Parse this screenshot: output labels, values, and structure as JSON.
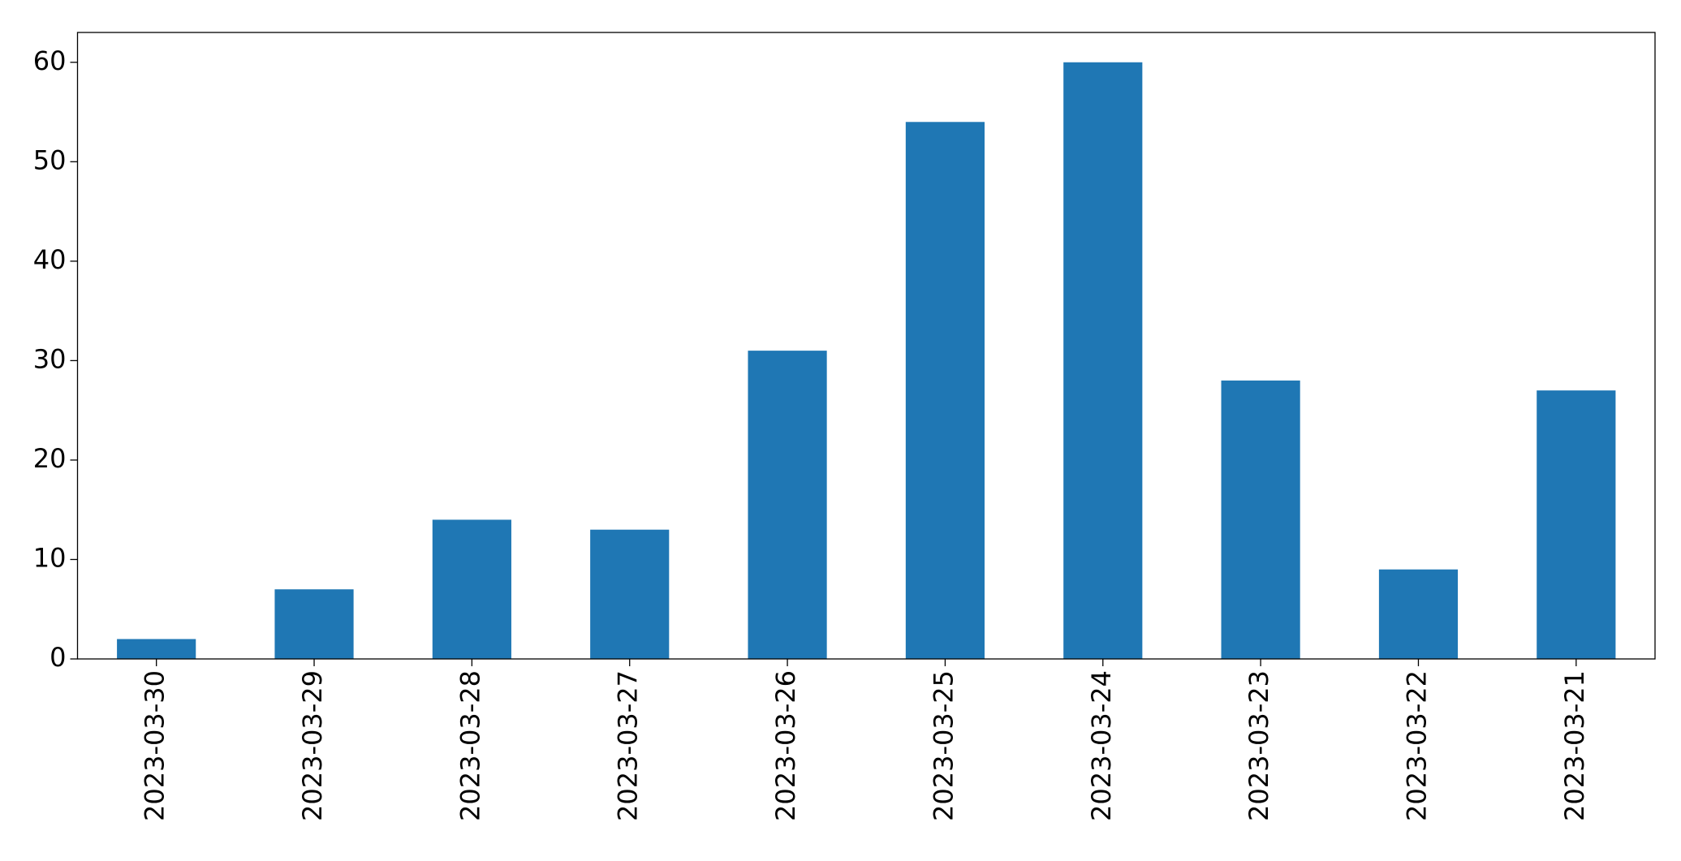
{
  "chart_data": {
    "type": "bar",
    "categories": [
      "2023-03-30",
      "2023-03-29",
      "2023-03-28",
      "2023-03-27",
      "2023-03-26",
      "2023-03-25",
      "2023-03-24",
      "2023-03-23",
      "2023-03-22",
      "2023-03-21"
    ],
    "values": [
      2,
      7,
      14,
      13,
      31,
      54,
      60,
      28,
      9,
      27
    ],
    "color": "#1f77b4",
    "ylim": [
      0,
      63
    ],
    "yticks": [
      0,
      10,
      20,
      30,
      40,
      50,
      60
    ]
  }
}
